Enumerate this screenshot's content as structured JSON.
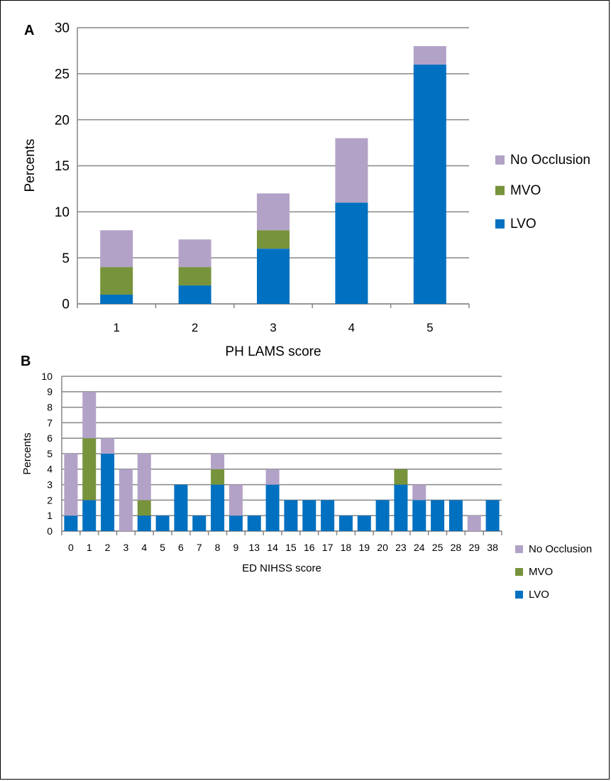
{
  "colors": {
    "no_occlusion": "#B3A2C7",
    "mvo": "#77933C",
    "lvo": "#0070C0",
    "grid": "#868686"
  },
  "chart_data": [
    {
      "type": "bar",
      "stacked": true,
      "panel_label": "A",
      "xlabel": "PH LAMS score",
      "ylabel": "Percents",
      "ylim": [
        0,
        30
      ],
      "yticks": [
        0,
        5,
        10,
        15,
        20,
        25,
        30
      ],
      "grid": true,
      "legend_position": "right",
      "categories": [
        "1",
        "2",
        "3",
        "4",
        "5"
      ],
      "series": [
        {
          "name": "LVO",
          "color": "#0070C0",
          "values": [
            1,
            2,
            6,
            11,
            26
          ]
        },
        {
          "name": "MVO",
          "color": "#77933C",
          "values": [
            3,
            2,
            2,
            0,
            0
          ]
        },
        {
          "name": "No Occlusion",
          "color": "#B3A2C7",
          "values": [
            4,
            3,
            4,
            7,
            2
          ]
        }
      ],
      "legend": [
        "No Occlusion",
        "MVO",
        "LVO"
      ]
    },
    {
      "type": "bar",
      "stacked": true,
      "panel_label": "B",
      "xlabel": "ED NIHSS score",
      "ylabel": "Percents",
      "ylim": [
        0,
        10
      ],
      "yticks": [
        0,
        1,
        2,
        3,
        4,
        5,
        6,
        7,
        8,
        9,
        10
      ],
      "grid": true,
      "legend_position": "right",
      "categories": [
        "0",
        "1",
        "2",
        "3",
        "4",
        "5",
        "6",
        "7",
        "8",
        "9",
        "13",
        "14",
        "15",
        "16",
        "17",
        "18",
        "19",
        "20",
        "23",
        "24",
        "25",
        "28",
        "29",
        "38"
      ],
      "series": [
        {
          "name": "LVO",
          "color": "#0070C0",
          "values": [
            1,
            2,
            5,
            0,
            1,
            1,
            3,
            1,
            3,
            1,
            1,
            3,
            2,
            2,
            2,
            1,
            1,
            2,
            3,
            2,
            2,
            2,
            0,
            2
          ]
        },
        {
          "name": "MVO",
          "color": "#77933C",
          "values": [
            0,
            4,
            0,
            0,
            1,
            0,
            0,
            0,
            1,
            0,
            0,
            0,
            0,
            0,
            0,
            0,
            0,
            0,
            1,
            0,
            0,
            0,
            0,
            0
          ]
        },
        {
          "name": "No Occlusion",
          "color": "#B3A2C7",
          "values": [
            4,
            3,
            1,
            4,
            3,
            0,
            0,
            0,
            1,
            2,
            0,
            1,
            0,
            0,
            0,
            0,
            0,
            0,
            0,
            1,
            0,
            0,
            1,
            0
          ]
        }
      ],
      "legend": [
        "No Occlusion",
        "MVO",
        "LVO"
      ]
    }
  ]
}
